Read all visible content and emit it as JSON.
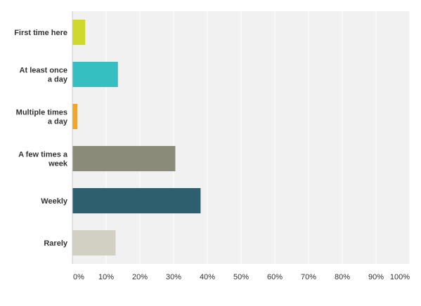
{
  "chart_data": {
    "type": "bar",
    "orientation": "horizontal",
    "categories": [
      [
        "First time here"
      ],
      [
        "At least once",
        "a day"
      ],
      [
        "Multiple times",
        "a day"
      ],
      [
        "A few times a",
        "week"
      ],
      [
        "Weekly"
      ],
      [
        "Rarely"
      ]
    ],
    "values": [
      3.8,
      13.5,
      1.5,
      30.5,
      38.0,
      12.8
    ],
    "colors": [
      "#cfd82c",
      "#35bfc0",
      "#f0a626",
      "#8a8c79",
      "#2e5f6e",
      "#d1d0c3"
    ],
    "xlim": [
      0,
      100
    ],
    "ticks": [
      "0%",
      "10%",
      "20%",
      "30%",
      "40%",
      "50%",
      "60%",
      "70%",
      "80%",
      "90%",
      "100%"
    ],
    "grid": true,
    "title": "",
    "xlabel": "",
    "ylabel": "",
    "plot_background": "#f1f1f1",
    "grid_color": "#ffffff"
  }
}
